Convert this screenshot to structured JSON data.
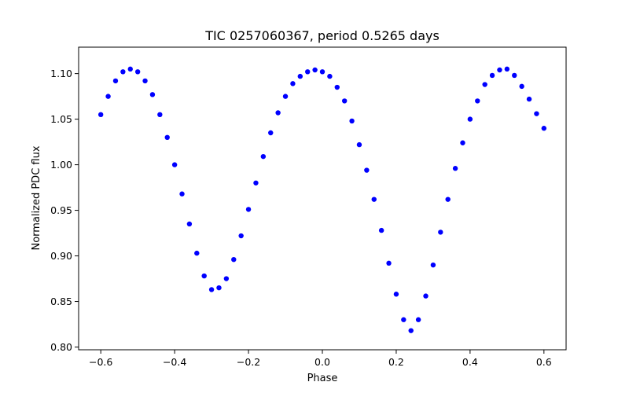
{
  "chart_data": {
    "type": "scatter",
    "title": "TIC 0257060367, period 0.5265 days",
    "xlabel": "Phase",
    "ylabel": "Normalized PDC flux",
    "xlim": [
      -0.66,
      0.66
    ],
    "ylim": [
      0.797,
      1.129
    ],
    "xticks": [
      -0.6,
      -0.4,
      -0.2,
      0.0,
      0.2,
      0.4,
      0.6
    ],
    "xtick_labels": [
      "−0.6",
      "−0.4",
      "−0.2",
      "0.0",
      "0.2",
      "0.4",
      "0.6"
    ],
    "yticks": [
      0.8,
      0.85,
      0.9,
      0.95,
      1.0,
      1.05,
      1.1
    ],
    "ytick_labels": [
      "0.80",
      "0.85",
      "0.90",
      "0.95",
      "1.00",
      "1.05",
      "1.10"
    ],
    "grid": false,
    "legend": false,
    "marker_color": "#0000ff",
    "series": [
      {
        "x": [
          -0.6,
          -0.58,
          -0.56,
          -0.54,
          -0.52,
          -0.5,
          -0.48,
          -0.46,
          -0.44,
          -0.42,
          -0.4,
          -0.38,
          -0.36,
          -0.34,
          -0.32,
          -0.3,
          -0.28,
          -0.26,
          -0.24,
          -0.22,
          -0.2,
          -0.18,
          -0.16,
          -0.14,
          -0.12,
          -0.1,
          -0.08,
          -0.06,
          -0.04,
          -0.02,
          0.0,
          0.02,
          0.04,
          0.06,
          0.08,
          0.1,
          0.12,
          0.14,
          0.16,
          0.18,
          0.2,
          0.22,
          0.24,
          0.26,
          0.28,
          0.3,
          0.32,
          0.34,
          0.36,
          0.38,
          0.4,
          0.42,
          0.44,
          0.46,
          0.48,
          0.5,
          0.52,
          0.54,
          0.56,
          0.58,
          0.6
        ],
        "y": [
          1.055,
          1.075,
          1.092,
          1.102,
          1.105,
          1.102,
          1.092,
          1.077,
          1.055,
          1.03,
          1.0,
          0.968,
          0.935,
          0.903,
          0.878,
          0.863,
          0.865,
          0.875,
          0.896,
          0.922,
          0.951,
          0.98,
          1.009,
          1.035,
          1.057,
          1.075,
          1.089,
          1.097,
          1.102,
          1.104,
          1.102,
          1.097,
          1.085,
          1.07,
          1.048,
          1.022,
          0.994,
          0.962,
          0.928,
          0.892,
          0.858,
          0.83,
          0.818,
          0.83,
          0.856,
          0.89,
          0.926,
          0.962,
          0.996,
          1.024,
          1.05,
          1.07,
          1.088,
          1.098,
          1.104,
          1.105,
          1.098,
          1.086,
          1.072,
          1.056,
          1.04
        ]
      }
    ]
  }
}
